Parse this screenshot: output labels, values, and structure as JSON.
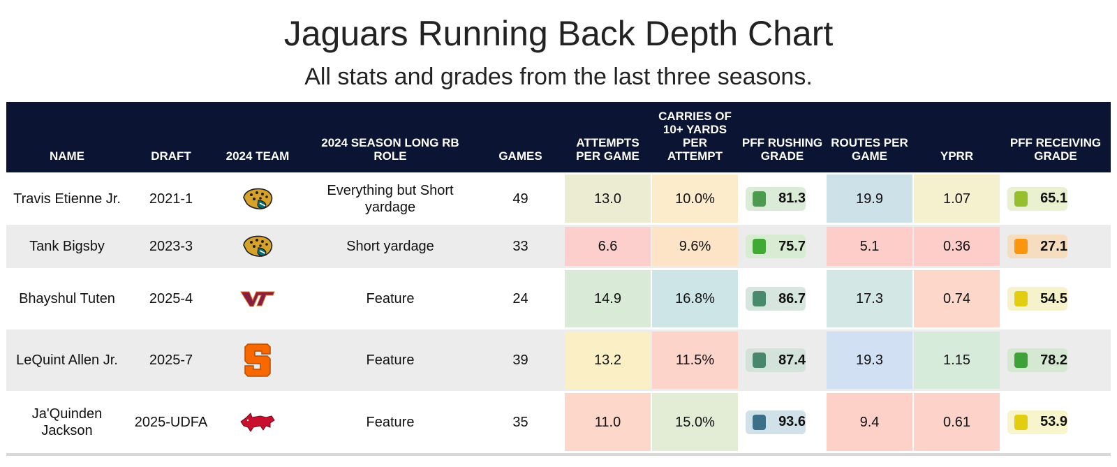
{
  "title": "Jaguars Running Back Depth Chart",
  "subtitle": "All stats and grades from the last three seasons.",
  "columns": {
    "name": "NAME",
    "draft": "DRAFT",
    "team": "2024 TEAM",
    "role": "2024 SEASON LONG RB ROLE",
    "games": "GAMES",
    "attempts": "ATTEMPTS PER GAME",
    "carries": "CARRIES OF 10+ YARDS PER ATTEMPT",
    "rushing_grade": "PFF RUSHING GRADE",
    "routes": "ROUTES PER GAME",
    "yprr": "YPRR",
    "receiving_grade": "PFF RECEIVING GRADE"
  },
  "colors": {
    "header_bg": "#0c1433",
    "alt_row": "#ececec",
    "grade_elite": "#3e7a8a",
    "grade_high": "#48896c",
    "grade_good": "#45a340",
    "grade_ok": "#8fbd2a",
    "grade_avg": "#e3cd11",
    "grade_low": "#fa960e"
  },
  "chart_data": {
    "type": "table",
    "rows": [
      {
        "name": "Travis Etienne Jr.",
        "draft": "2021-1",
        "team_logo": "jaguars-logo-icon",
        "role": "Everything but Short yardage",
        "games": "49",
        "attempts": "13.0",
        "attempts_bg": "#ececd2",
        "carries": "10.0%",
        "carries_bg": "#fdeccb",
        "rushing": "81.3",
        "rushing_color": "#4b9a4e",
        "rushing_bg": "#daebd7",
        "routes": "19.9",
        "routes_bg": "#cde2e8",
        "yprr": "1.07",
        "yprr_bg": "#f5f0cd",
        "receiving": "65.1",
        "receiving_color": "#95bf2d",
        "receiving_bg": "#eaf1d1"
      },
      {
        "name": "Tank Bigsby",
        "draft": "2023-3",
        "team_logo": "jaguars-logo-icon",
        "role": "Short yardage",
        "games": "33",
        "attempts": "6.6",
        "attempts_bg": "#fdcfcc",
        "carries": "9.6%",
        "carries_bg": "#fde4c6",
        "rushing": "75.7",
        "rushing_color": "#3fab34",
        "rushing_bg": "#d7ecd2",
        "routes": "5.1",
        "routes_bg": "#fdcdc9",
        "yprr": "0.36",
        "yprr_bg": "#fdcdc9",
        "receiving": "27.1",
        "receiving_color": "#fa960e",
        "receiving_bg": "#f6ddc0"
      },
      {
        "name": "Bhayshul Tuten",
        "draft": "2025-4",
        "team_logo": "virginia-tech-logo-icon",
        "role": "Feature",
        "games": "24",
        "attempts": "14.9",
        "attempts_bg": "#d9ead6",
        "carries": "16.8%",
        "carries_bg": "#cde5e6",
        "rushing": "86.7",
        "rushing_color": "#498a6c",
        "rushing_bg": "#d6e5de",
        "routes": "17.3",
        "routes_bg": "#d3e8e4",
        "yprr": "0.74",
        "yprr_bg": "#fdd7c9",
        "receiving": "54.5",
        "receiving_color": "#e3cd11",
        "receiving_bg": "#f6f2cc"
      },
      {
        "name": "LeQuint Allen Jr.",
        "draft": "2025-7",
        "team_logo": "syracuse-logo-icon",
        "role": "Feature",
        "games": "39",
        "attempts": "13.2",
        "attempts_bg": "#fbf0c5",
        "carries": "11.5%",
        "carries_bg": "#fdd4ca",
        "rushing": "87.4",
        "rushing_color": "#49876c",
        "rushing_bg": "#d3e3dc",
        "routes": "19.3",
        "routes_bg": "#d1e0f3",
        "yprr": "1.15",
        "yprr_bg": "#d7ebdb",
        "receiving": "78.2",
        "receiving_color": "#3ea239",
        "receiving_bg": "#d5e8d2"
      },
      {
        "name": "Ja'Quinden Jackson",
        "draft": "2025-UDFA",
        "team_logo": "arkansas-logo-icon",
        "role": "Feature",
        "games": "35",
        "attempts": "11.0",
        "attempts_bg": "#fdd7c9",
        "carries": "15.0%",
        "carries_bg": "#e3edd5",
        "rushing": "93.6",
        "rushing_color": "#3b7088",
        "rushing_bg": "#d0e1e9",
        "routes": "9.4",
        "routes_bg": "#fdd0c8",
        "yprr": "0.61",
        "yprr_bg": "#fdd3c9",
        "receiving": "53.9",
        "receiving_color": "#e3cd11",
        "receiving_bg": "#f8f4cc"
      }
    ]
  }
}
